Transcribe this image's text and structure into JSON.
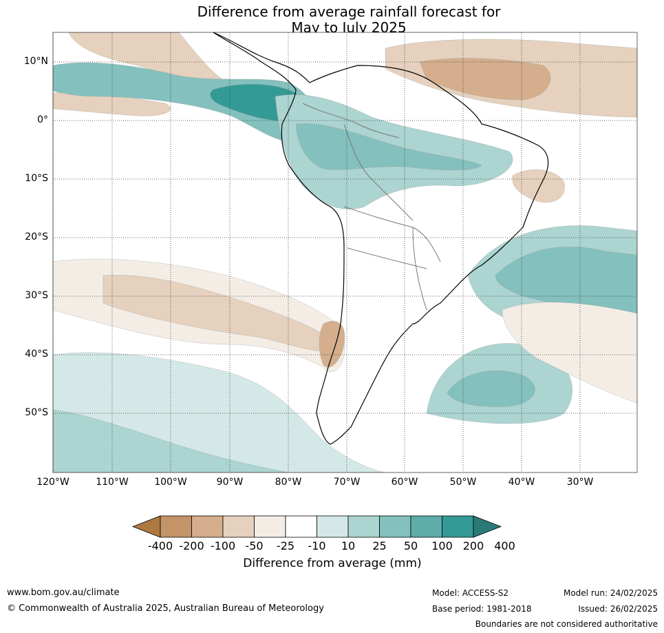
{
  "title": {
    "line1": "Difference from average rainfall forecast for",
    "line2": "May to July 2025"
  },
  "map": {
    "lat_labels": [
      "10°N",
      "0°",
      "10°S",
      "20°S",
      "30°S",
      "40°S",
      "50°S"
    ],
    "lon_labels": [
      "120°W",
      "110°W",
      "100°W",
      "90°W",
      "80°W",
      "70°W",
      "60°W",
      "50°W",
      "40°W",
      "30°W"
    ],
    "colors": {
      "lt_m200": "#ae7841",
      "m200_m100": "#c29468",
      "m100_m50": "#d4ae8d",
      "m50_m25": "#e5d1bd",
      "m25_m10": "#f3ede6",
      "m10_10": "#ffffff",
      "p10_25": "#d4e9e7",
      "p25_50": "#acd4d1",
      "p50_100": "#84c0bd",
      "p100_200": "#5eadaa",
      "p200_400": "#349a96",
      "gt_400": "#2a7a77"
    }
  },
  "colorbar": {
    "labels": [
      "-400",
      "-200",
      "-100",
      "-50",
      "-25",
      "-10",
      "10",
      "25",
      "50",
      "100",
      "200",
      "400"
    ],
    "title": "Difference from average (mm)"
  },
  "footer": {
    "website": "www.bom.gov.au/climate",
    "copyright": "© Commonwealth of Australia 2025, Australian Bureau of Meteorology",
    "model": "Model: ACCESS-S2",
    "base_period": "Base period: 1981-2018",
    "model_run": "Model run: 24/02/2025",
    "issued": "Issued: 26/02/2025",
    "disclaimer": "Boundaries are not considered authoritative"
  }
}
